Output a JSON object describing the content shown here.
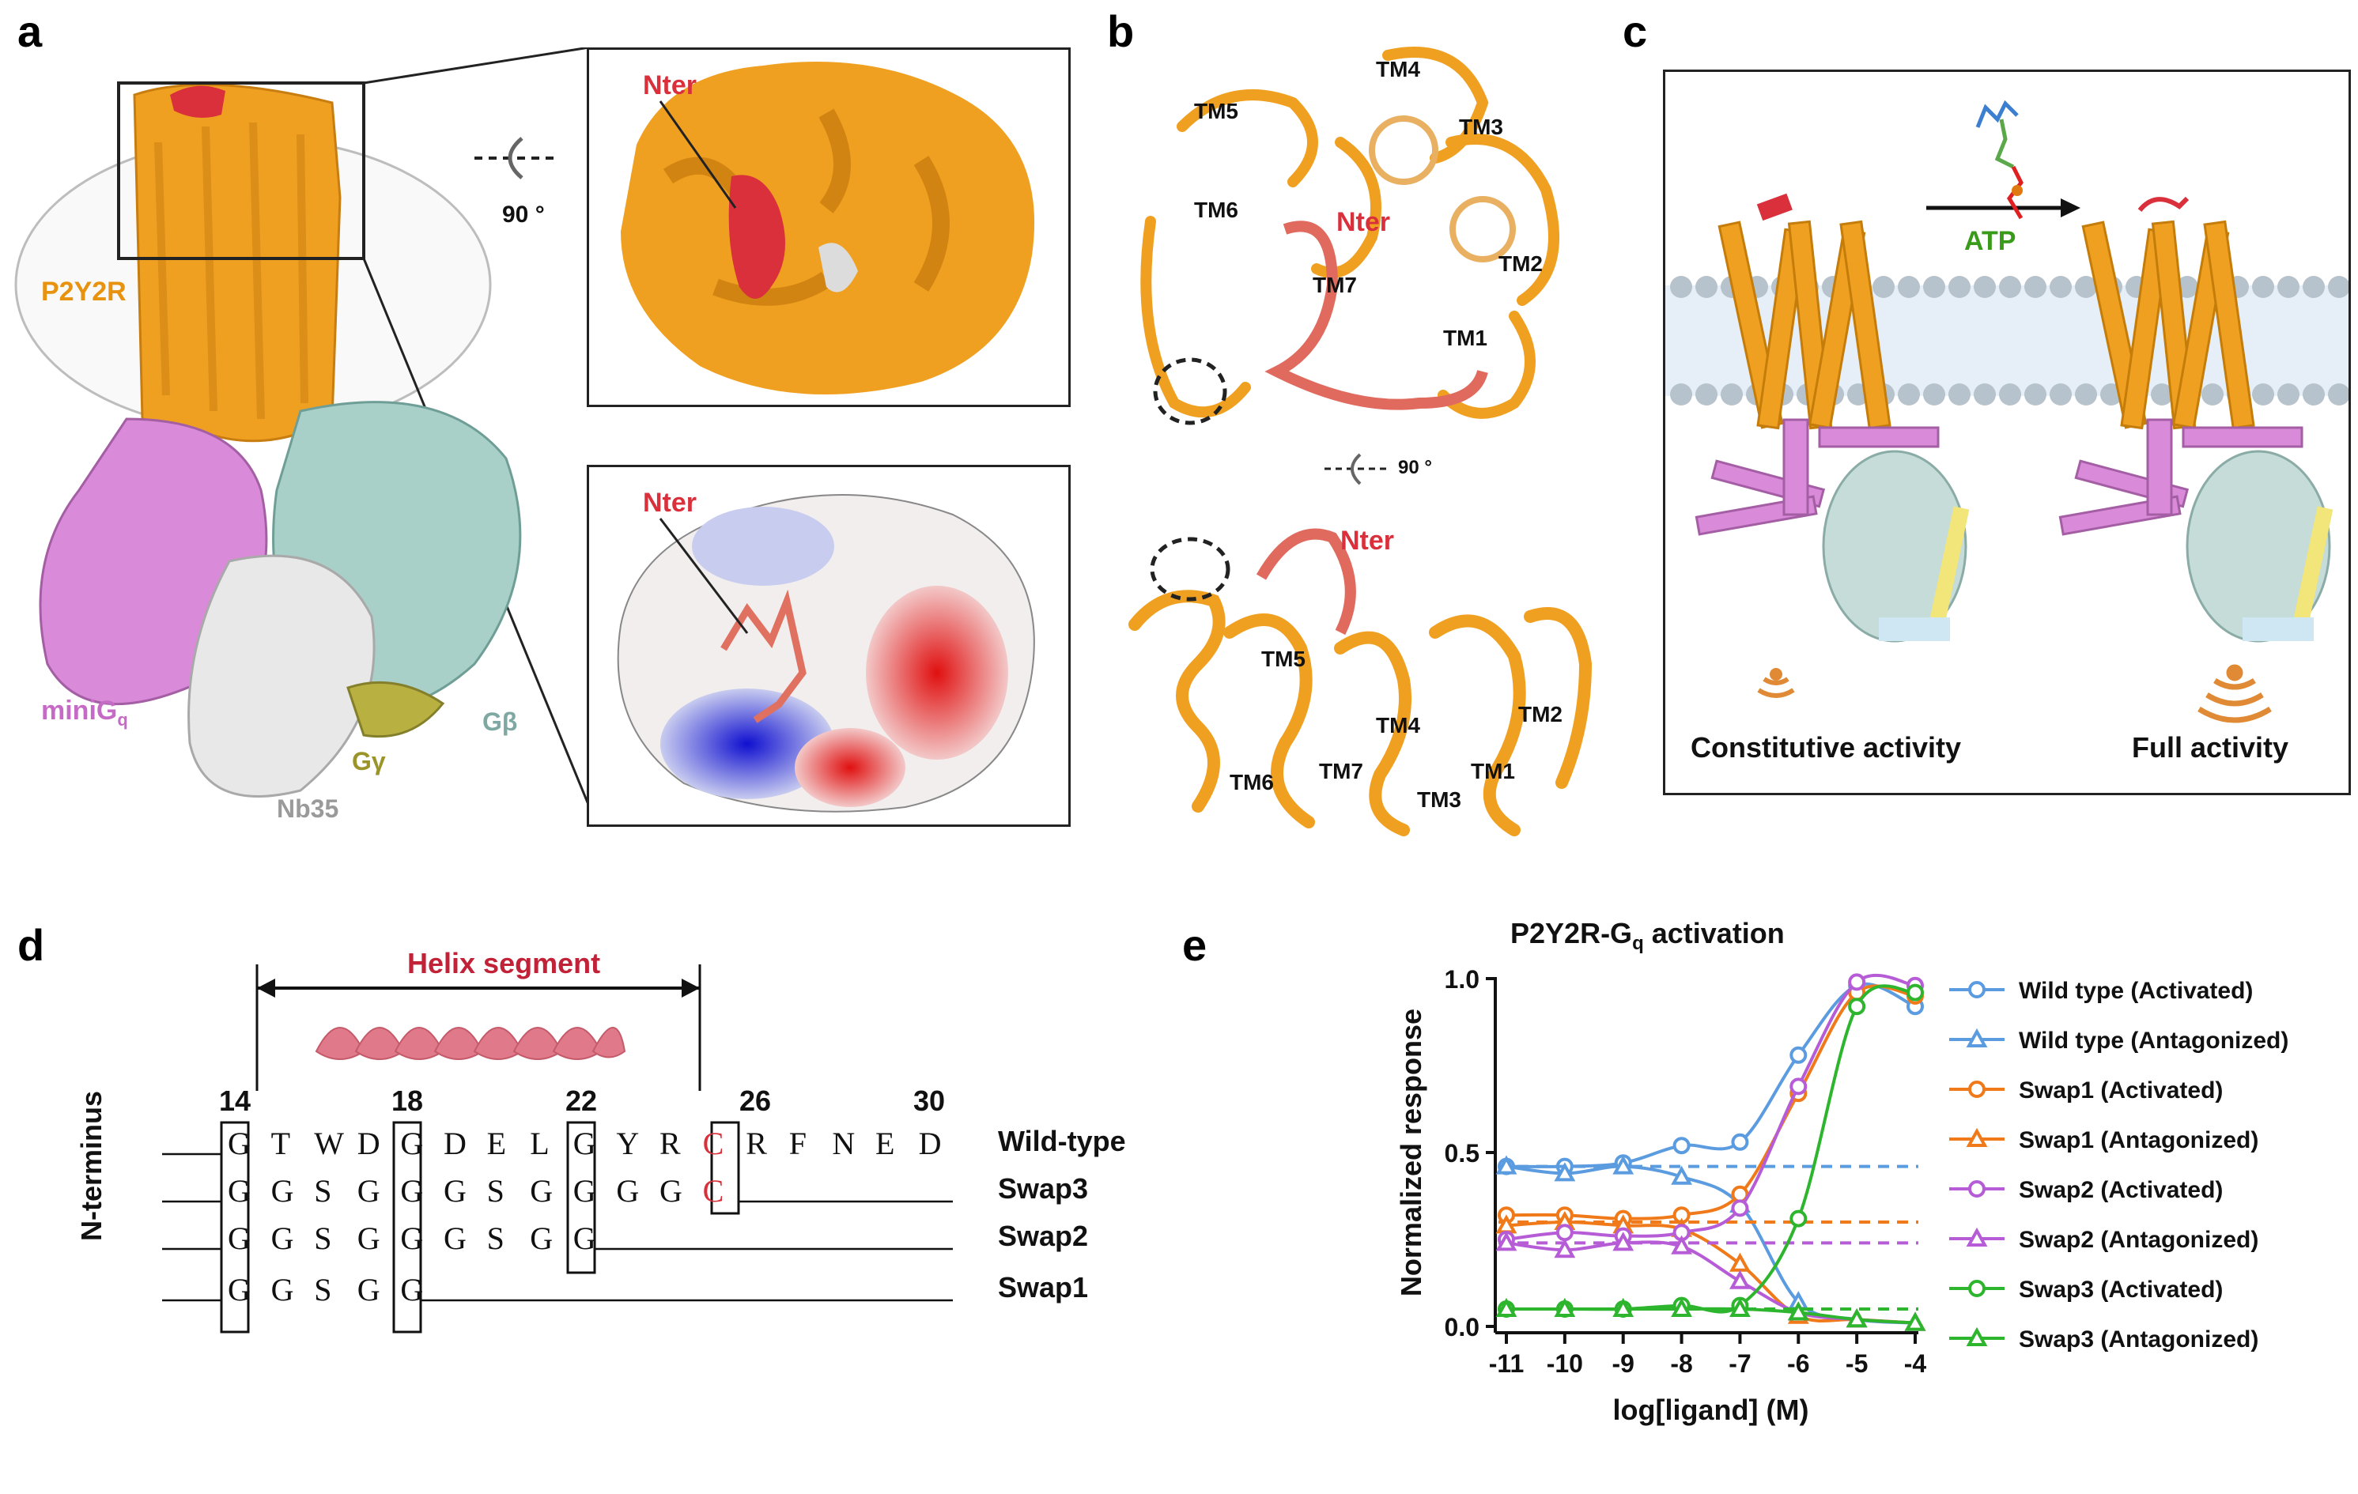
{
  "panel_letters": {
    "a": "a",
    "b": "b",
    "c": "c",
    "d": "d",
    "e": "e"
  },
  "panel_a": {
    "receptor_label": "P2Y2R",
    "rotation_label": "90 °",
    "nter_top": "Nter",
    "nter_bottom": "Nter",
    "minigq_label": "miniG",
    "minigq_sub": "q",
    "gbeta_label": "Gβ",
    "ggamma_label": "Gγ",
    "nb35_label": "Nb35",
    "colors": {
      "receptor": "#F0A020",
      "nter": "#D9303C",
      "minigq": "#D98AD9",
      "gbeta": "#A9CFC9",
      "nb35": "#E8E8E8",
      "ggamma": "#B8B040"
    }
  },
  "panel_b": {
    "top": {
      "tm5": "TM5",
      "tm4": "TM4",
      "tm3": "TM3",
      "tm6": "TM6",
      "nter": "Nter",
      "tm7": "TM7",
      "tm2": "TM2",
      "tm1": "TM1"
    },
    "rotation_label": "90 °",
    "bottom": {
      "nter": "Nter",
      "tm5": "TM5",
      "tm4": "TM4",
      "tm2": "TM2",
      "tm6": "TM6",
      "tm7": "TM7",
      "tm1": "TM1",
      "tm3": "TM3"
    }
  },
  "panel_c": {
    "ligand_label": "ATP",
    "left_caption": "Constitutive activity",
    "right_caption": "Full activity"
  },
  "panel_d": {
    "helix_label": "Helix segment",
    "axis_label": "N-terminus",
    "positions": [
      "14",
      "18",
      "22",
      "26",
      "30"
    ],
    "rows": [
      {
        "name": "Wild-type",
        "prefix": "---",
        "residues": [
          "G",
          "T",
          "W",
          "D",
          "G",
          "D",
          "E",
          "L",
          "G",
          "Y",
          "R",
          "C",
          "R",
          "F",
          "N",
          "E",
          "D"
        ]
      },
      {
        "name": "Swap3",
        "prefix": "---",
        "residues": [
          "G",
          "G",
          "S",
          "G",
          "G",
          "G",
          "S",
          "G",
          "G",
          "G",
          "G",
          "C"
        ]
      },
      {
        "name": "Swap2",
        "prefix": "---",
        "residues": [
          "G",
          "G",
          "S",
          "G",
          "G",
          "G",
          "S",
          "G",
          "G"
        ]
      },
      {
        "name": "Swap1",
        "prefix": "---",
        "residues": [
          "G",
          "G",
          "S",
          "G",
          "G"
        ]
      }
    ]
  },
  "chart_data": {
    "type": "scatter",
    "title": "P2Y2R-G",
    "title_sub": "q",
    "title_suffix": " activation",
    "xlabel": "log[ligand] (M)",
    "ylabel": "Normalized response",
    "x": [
      -11,
      -10,
      -9,
      -8,
      -7,
      -6,
      -5,
      -4
    ],
    "xticks": [
      "-11",
      "-10",
      "-9",
      "-8",
      "-7",
      "-6",
      "-5",
      "-4"
    ],
    "yticks": [
      "0.0",
      "0.5",
      "1.0"
    ],
    "xlim": [
      -11,
      -4
    ],
    "ylim": [
      0,
      1.0
    ],
    "legend_position": "right",
    "series": [
      {
        "name": "Wild type (Activated)",
        "color": "#5B9BE0",
        "marker": "circle",
        "values": [
          0.46,
          0.46,
          0.47,
          0.52,
          0.53,
          0.78,
          0.98,
          0.92
        ],
        "baseline": null
      },
      {
        "name": "Wild type (Antagonized)",
        "color": "#5B9BE0",
        "marker": "triangle",
        "values": [
          0.46,
          0.44,
          0.46,
          0.43,
          0.35,
          0.07,
          0.02,
          0.01
        ],
        "baseline": 0.46
      },
      {
        "name": "Swap1 (Activated)",
        "color": "#F07A1A",
        "marker": "circle",
        "values": [
          0.32,
          0.32,
          0.31,
          0.32,
          0.38,
          0.67,
          0.96,
          0.95
        ],
        "baseline": null
      },
      {
        "name": "Swap1 (Antagonized)",
        "color": "#F07A1A",
        "marker": "triangle",
        "values": [
          0.29,
          0.3,
          0.29,
          0.28,
          0.18,
          0.03,
          0.02,
          0.01
        ],
        "baseline": 0.3
      },
      {
        "name": "Swap2 (Activated)",
        "color": "#B55CD6",
        "marker": "circle",
        "values": [
          0.25,
          0.27,
          0.26,
          0.27,
          0.34,
          0.69,
          0.99,
          0.98
        ],
        "baseline": null
      },
      {
        "name": "Swap2 (Antagonized)",
        "color": "#B55CD6",
        "marker": "triangle",
        "values": [
          0.24,
          0.22,
          0.24,
          0.23,
          0.13,
          0.04,
          0.02,
          0.01
        ],
        "baseline": 0.24
      },
      {
        "name": "Swap3 (Activated)",
        "color": "#2DB52D",
        "marker": "circle",
        "values": [
          0.05,
          0.05,
          0.05,
          0.06,
          0.06,
          0.31,
          0.92,
          0.96
        ],
        "baseline": null
      },
      {
        "name": "Swap3 (Antagonized)",
        "color": "#2DB52D",
        "marker": "triangle",
        "values": [
          0.05,
          0.05,
          0.05,
          0.05,
          0.05,
          0.04,
          0.02,
          0.01
        ],
        "baseline": 0.05
      }
    ]
  }
}
